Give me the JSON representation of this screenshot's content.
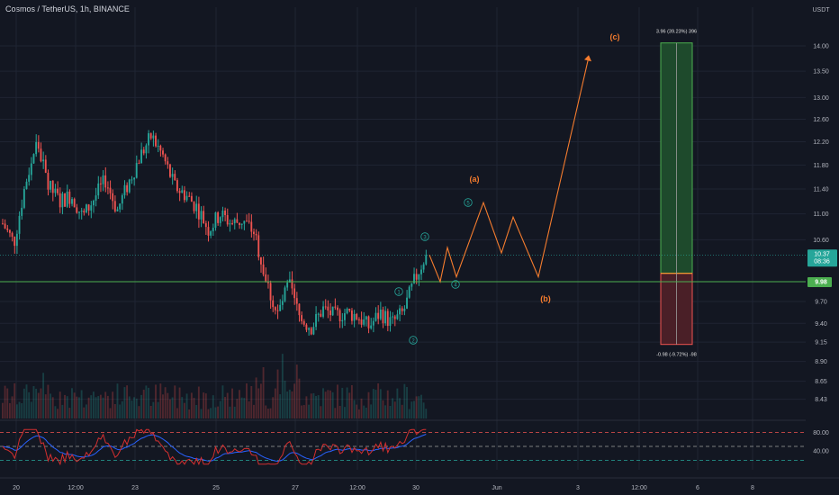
{
  "header": {
    "title": "Cosmos / TetherUS, 1h, BINANCE"
  },
  "price_scale": {
    "currency": "USDT",
    "labels": [
      "14.00",
      "13.50",
      "13.00",
      "12.60",
      "12.20",
      "11.80",
      "11.40",
      "11.00",
      "10.60",
      "10.37",
      "9.98",
      "9.70",
      "9.40",
      "9.15",
      "8.90",
      "8.65",
      "8.43"
    ],
    "current_price_label": "10.37",
    "countdown": "08:36",
    "line_price_label": "9.98"
  },
  "oscillator_scale": {
    "labels": [
      "80.00",
      "40.00"
    ]
  },
  "time_axis": {
    "labels": [
      "20",
      "12:00",
      "23",
      "25",
      "27",
      "12:00",
      "30",
      "Jun",
      "3",
      "12:00",
      "6",
      "8"
    ]
  },
  "annotations": {
    "wave_labels": [
      "(a)",
      "(b)",
      "(c)"
    ],
    "impulse_labels": [
      "1",
      "2",
      "3",
      "4",
      "5"
    ],
    "long_position": {
      "target_text": "3.96 (39.23%) 396",
      "stop_text": "-0.98 (-9.72%) -98"
    }
  },
  "colors": {
    "background": "#131722",
    "up": "#26a69a",
    "down": "#ef5350",
    "projection": "#f57c2e",
    "level_line": "#4caf50",
    "rsi": "#d32f2f",
    "rsi_ma": "#2962ff",
    "profit_zone": "#1e4a2c",
    "loss_zone": "#4a1f27"
  },
  "chart_data": {
    "type": "candlestick",
    "symbol": "ATOM/USDT",
    "timeframe": "1h",
    "y_scale": "log",
    "ylim": [
      8.2,
      14.8
    ],
    "current_price": 10.37,
    "horizontal_level": 9.98,
    "price_path_approx": [
      10.85,
      10.55,
      11.5,
      12.2,
      11.45,
      11.2,
      11.3,
      10.95,
      11.25,
      11.55,
      11.05,
      11.5,
      11.95,
      12.3,
      11.95,
      11.45,
      11.3,
      11.1,
      10.75,
      11.0,
      10.85,
      10.9,
      10.7,
      10.0,
      9.5,
      9.95,
      9.45,
      9.35,
      9.6,
      9.5,
      9.55,
      9.5,
      9.35,
      9.55,
      9.4,
      9.55,
      10.0,
      10.38
    ],
    "projection_path": [
      {
        "label": "5",
        "price": 10.37
      },
      {
        "price": 9.98
      },
      {
        "price": 10.48
      },
      {
        "price": 10.05
      },
      {
        "label": "(a)",
        "price": 11.18
      },
      {
        "price": 10.4
      },
      {
        "price": 10.95
      },
      {
        "label": "(b)",
        "price": 10.05
      },
      {
        "label": "(c)",
        "price": 13.78
      }
    ],
    "long_position": {
      "entry": 10.1,
      "target": 14.06,
      "stop": 9.12,
      "target_pct": 39.23,
      "stop_pct": -9.72
    },
    "rsi": {
      "upper": 80,
      "middle": 50,
      "lower": 20
    },
    "x_ticks": [
      "20",
      "12:00",
      "23",
      "25",
      "27",
      "12:00",
      "30",
      "Jun",
      "3",
      "12:00",
      "6",
      "8"
    ]
  }
}
